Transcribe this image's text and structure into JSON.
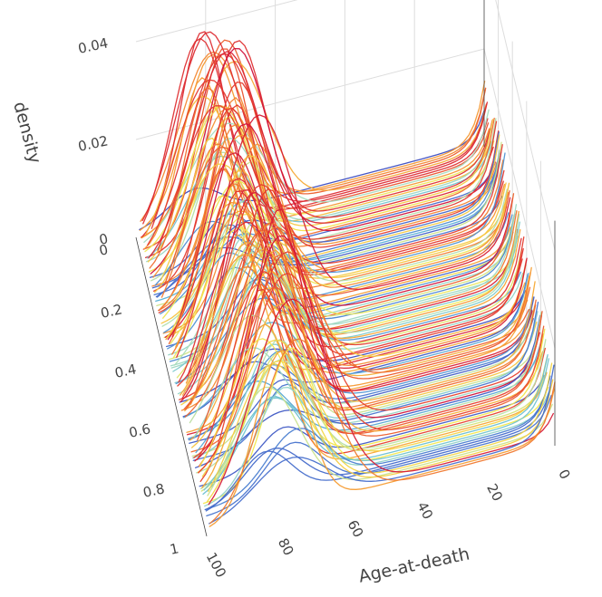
{
  "chart_data": {
    "type": "3d-line",
    "x_axis_label": "Age-at-death",
    "y_axis_label": "",
    "z_axis_label": "density",
    "x_ticks": [
      "0",
      "20",
      "40",
      "60",
      "80",
      "100"
    ],
    "y_ticks": [
      "0",
      "0.2",
      "0.4",
      "0.6",
      "0.8",
      "1"
    ],
    "z_ticks": [
      "0",
      "0.02",
      "0.04"
    ],
    "x_range": [
      0,
      100
    ],
    "y_range": [
      0,
      1
    ],
    "z_range": [
      0,
      0.045
    ],
    "grid": true,
    "n_curves": 140,
    "curve_shape": "density curves peaking between age 70 and 85, peak height up to about 0.043",
    "colorscale": [
      "#3b4cc0",
      "#4a7bd0",
      "#5ab8d6",
      "#a6dcc0",
      "#f2e84b",
      "#f7a233",
      "#e8432b",
      "#d0103a"
    ]
  }
}
